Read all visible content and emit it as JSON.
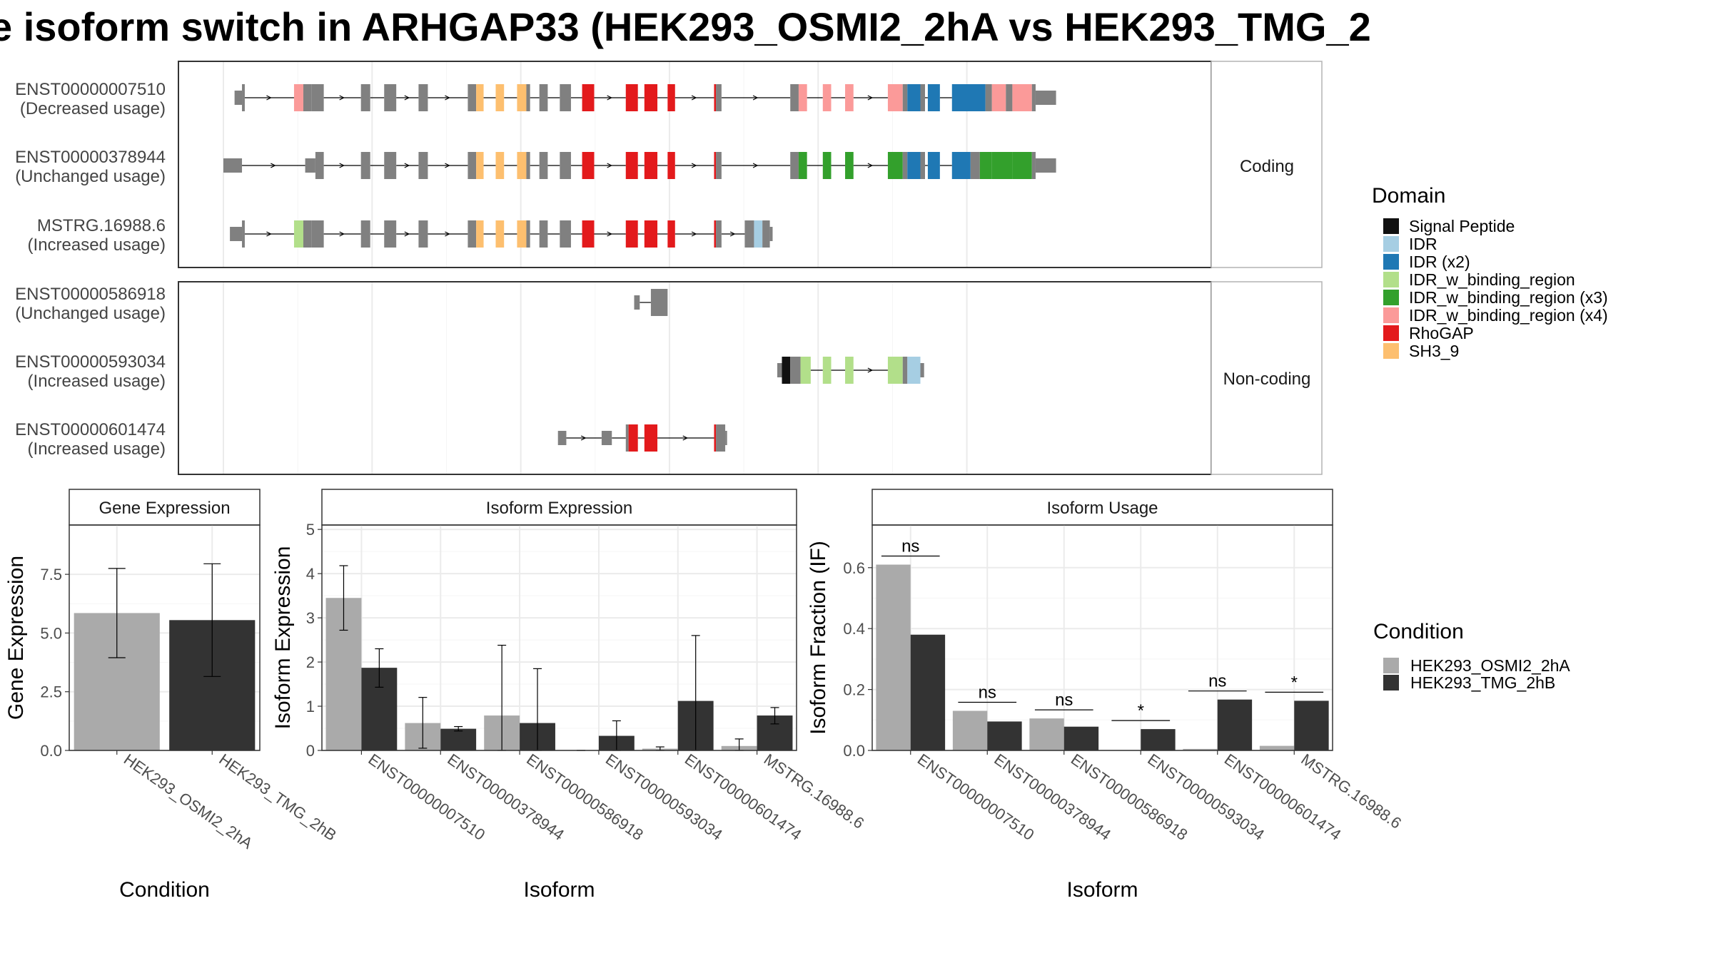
{
  "title": "e isoform switch in ARHGAP33 (HEK293_OSMI2_2hA vs HEK293_TMG_2",
  "colors": {
    "intron": "#000000",
    "exon": "#808080",
    "cond1": "#aaaaaa",
    "cond2": "#333333",
    "grid": "#ebebeb",
    "panel_border": "#333333",
    "strip_border": "#b3b3b3"
  },
  "structure": {
    "coding_label": "Coding",
    "noncoding_label": "Non-coding",
    "coding": [
      {
        "id": "ENST00000007510",
        "usage": "(Decreased usage)",
        "start": 12,
        "end": 1015,
        "exons": [
          {
            "s": 12,
            "e": 20,
            "h": "s"
          },
          {
            "s": 20,
            "e": 23,
            "h": "m"
          },
          {
            "s": 76,
            "e": 86,
            "h": "t",
            "d": "IDR_w_binding_region (x4)"
          },
          {
            "s": 86,
            "e": 95,
            "h": "t"
          },
          {
            "s": 95,
            "e": 108,
            "h": "t"
          },
          {
            "s": 148,
            "e": 158,
            "h": "t"
          },
          {
            "s": 173,
            "e": 186,
            "h": "t"
          },
          {
            "s": 210,
            "e": 220,
            "h": "t"
          },
          {
            "s": 263,
            "e": 272,
            "h": "t"
          },
          {
            "s": 272,
            "e": 280,
            "h": "t",
            "d": "SH3_9"
          },
          {
            "s": 293,
            "e": 302,
            "h": "t",
            "d": "SH3_9"
          },
          {
            "s": 316,
            "e": 326,
            "h": "t",
            "d": "SH3_9"
          },
          {
            "s": 326,
            "e": 330,
            "h": "t"
          },
          {
            "s": 340,
            "e": 349,
            "h": "t"
          },
          {
            "s": 362,
            "e": 374,
            "h": "t"
          },
          {
            "s": 386,
            "e": 399,
            "h": "t",
            "d": "RhoGAP"
          },
          {
            "s": 433,
            "e": 446,
            "h": "t",
            "d": "RhoGAP"
          },
          {
            "s": 453,
            "e": 467,
            "h": "t",
            "d": "RhoGAP"
          },
          {
            "s": 478,
            "e": 486,
            "h": "t",
            "d": "RhoGAP"
          },
          {
            "s": 528,
            "e": 530,
            "h": "t",
            "d": "RhoGAP"
          },
          {
            "s": 530,
            "e": 536,
            "h": "t"
          },
          {
            "s": 610,
            "e": 619,
            "h": "t"
          },
          {
            "s": 619,
            "e": 628,
            "h": "t",
            "d": "IDR_w_binding_region (x4)"
          },
          {
            "s": 645,
            "e": 654,
            "h": "t",
            "d": "IDR_w_binding_region (x4)"
          },
          {
            "s": 669,
            "e": 678,
            "h": "t",
            "d": "IDR_w_binding_region (x4)"
          },
          {
            "s": 715,
            "e": 731,
            "h": "t",
            "d": "IDR_w_binding_region (x4)"
          },
          {
            "s": 731,
            "e": 736,
            "h": "t"
          },
          {
            "s": 736,
            "e": 750,
            "h": "t",
            "d": "IDR (x2)"
          },
          {
            "s": 750,
            "e": 755,
            "h": "t"
          },
          {
            "s": 758,
            "e": 771,
            "h": "t",
            "d": "IDR (x2)"
          },
          {
            "s": 784,
            "e": 820,
            "h": "t",
            "d": "IDR (x2)"
          },
          {
            "s": 820,
            "e": 827,
            "h": "t"
          },
          {
            "s": 827,
            "e": 842,
            "h": "t",
            "d": "IDR_w_binding_region (x4)"
          },
          {
            "s": 842,
            "e": 849,
            "h": "t"
          },
          {
            "s": 849,
            "e": 870,
            "h": "t",
            "d": "IDR_w_binding_region (x4)"
          },
          {
            "s": 870,
            "e": 874,
            "h": "t"
          },
          {
            "s": 874,
            "e": 896,
            "h": "s"
          }
        ]
      },
      {
        "id": "ENST00000378944",
        "usage": "(Unchanged usage)",
        "start": 0,
        "end": 1015,
        "exons": [
          {
            "s": 0,
            "e": 20,
            "h": "s"
          },
          {
            "s": 88,
            "e": 99,
            "h": "s"
          },
          {
            "s": 99,
            "e": 108,
            "h": "t"
          },
          {
            "s": 148,
            "e": 158,
            "h": "t"
          },
          {
            "s": 173,
            "e": 186,
            "h": "t"
          },
          {
            "s": 210,
            "e": 220,
            "h": "t"
          },
          {
            "s": 263,
            "e": 272,
            "h": "t"
          },
          {
            "s": 272,
            "e": 280,
            "h": "t",
            "d": "SH3_9"
          },
          {
            "s": 293,
            "e": 302,
            "h": "t",
            "d": "SH3_9"
          },
          {
            "s": 316,
            "e": 326,
            "h": "t",
            "d": "SH3_9"
          },
          {
            "s": 326,
            "e": 330,
            "h": "t"
          },
          {
            "s": 340,
            "e": 349,
            "h": "t"
          },
          {
            "s": 362,
            "e": 374,
            "h": "t"
          },
          {
            "s": 386,
            "e": 399,
            "h": "t",
            "d": "RhoGAP"
          },
          {
            "s": 433,
            "e": 446,
            "h": "t",
            "d": "RhoGAP"
          },
          {
            "s": 453,
            "e": 467,
            "h": "t",
            "d": "RhoGAP"
          },
          {
            "s": 478,
            "e": 486,
            "h": "t",
            "d": "RhoGAP"
          },
          {
            "s": 528,
            "e": 530,
            "h": "t",
            "d": "RhoGAP"
          },
          {
            "s": 530,
            "e": 536,
            "h": "t"
          },
          {
            "s": 610,
            "e": 619,
            "h": "t"
          },
          {
            "s": 619,
            "e": 628,
            "h": "t",
            "d": "IDR_w_binding_region (x3)"
          },
          {
            "s": 645,
            "e": 654,
            "h": "t",
            "d": "IDR_w_binding_region (x3)"
          },
          {
            "s": 669,
            "e": 678,
            "h": "t",
            "d": "IDR_w_binding_region (x3)"
          },
          {
            "s": 715,
            "e": 731,
            "h": "t",
            "d": "IDR_w_binding_region (x3)"
          },
          {
            "s": 731,
            "e": 736,
            "h": "t"
          },
          {
            "s": 736,
            "e": 750,
            "h": "t",
            "d": "IDR (x2)"
          },
          {
            "s": 750,
            "e": 755,
            "h": "t"
          },
          {
            "s": 758,
            "e": 771,
            "h": "t",
            "d": "IDR (x2)"
          },
          {
            "s": 784,
            "e": 804,
            "h": "t",
            "d": "IDR (x2)"
          },
          {
            "s": 804,
            "e": 814,
            "h": "t"
          },
          {
            "s": 814,
            "e": 827,
            "h": "t",
            "d": "IDR_w_binding_region (x3)"
          },
          {
            "s": 827,
            "e": 849,
            "h": "t",
            "d": "IDR_w_binding_region (x3)"
          },
          {
            "s": 849,
            "e": 870,
            "h": "t",
            "d": "IDR_w_binding_region (x3)"
          },
          {
            "s": 870,
            "e": 874,
            "h": "t"
          },
          {
            "s": 874,
            "e": 896,
            "h": "s"
          }
        ]
      },
      {
        "id": "MSTRG.16988.6",
        "usage": "(Increased usage)",
        "start": 7,
        "end": 610,
        "exons": [
          {
            "s": 7,
            "e": 20,
            "h": "s"
          },
          {
            "s": 20,
            "e": 23,
            "h": "m"
          },
          {
            "s": 76,
            "e": 86,
            "h": "t",
            "d": "IDR_w_binding_region"
          },
          {
            "s": 86,
            "e": 95,
            "h": "t"
          },
          {
            "s": 95,
            "e": 108,
            "h": "t"
          },
          {
            "s": 148,
            "e": 158,
            "h": "t"
          },
          {
            "s": 173,
            "e": 186,
            "h": "t"
          },
          {
            "s": 210,
            "e": 220,
            "h": "t"
          },
          {
            "s": 263,
            "e": 272,
            "h": "t"
          },
          {
            "s": 272,
            "e": 280,
            "h": "t",
            "d": "SH3_9"
          },
          {
            "s": 293,
            "e": 302,
            "h": "t",
            "d": "SH3_9"
          },
          {
            "s": 316,
            "e": 326,
            "h": "t",
            "d": "SH3_9"
          },
          {
            "s": 326,
            "e": 330,
            "h": "t"
          },
          {
            "s": 340,
            "e": 349,
            "h": "t"
          },
          {
            "s": 362,
            "e": 374,
            "h": "t"
          },
          {
            "s": 386,
            "e": 399,
            "h": "t",
            "d": "RhoGAP"
          },
          {
            "s": 433,
            "e": 446,
            "h": "t",
            "d": "RhoGAP"
          },
          {
            "s": 453,
            "e": 467,
            "h": "t",
            "d": "RhoGAP"
          },
          {
            "s": 478,
            "e": 486,
            "h": "t",
            "d": "RhoGAP"
          },
          {
            "s": 528,
            "e": 530,
            "h": "t",
            "d": "RhoGAP"
          },
          {
            "s": 530,
            "e": 536,
            "h": "t"
          },
          {
            "s": 561,
            "e": 571,
            "h": "t"
          },
          {
            "s": 571,
            "e": 580,
            "h": "t",
            "d": "IDR"
          },
          {
            "s": 580,
            "e": 588,
            "h": "t"
          },
          {
            "s": 588,
            "e": 591,
            "h": "s"
          }
        ]
      }
    ],
    "noncoding": [
      {
        "id": "ENST00000586918",
        "usage": "(Unchanged usage)",
        "start": 442,
        "end": 478,
        "exons": [
          {
            "s": 442,
            "e": 448,
            "h": "s"
          },
          {
            "s": 460,
            "e": 478,
            "h": "t"
          }
        ]
      },
      {
        "id": "ENST00000593034",
        "usage": "(Increased usage)",
        "start": 600,
        "end": 680,
        "exons": [
          {
            "s": 596,
            "e": 601,
            "h": "s"
          },
          {
            "s": 601,
            "e": 610,
            "h": "t",
            "d": "Signal Peptide"
          },
          {
            "s": 610,
            "e": 621,
            "h": "t"
          },
          {
            "s": 621,
            "e": 632,
            "h": "t",
            "d": "IDR_w_binding_region"
          },
          {
            "s": 645,
            "e": 654,
            "h": "t",
            "d": "IDR_w_binding_region"
          },
          {
            "s": 669,
            "e": 678,
            "h": "t",
            "d": "IDR_w_binding_region"
          },
          {
            "s": 715,
            "e": 731,
            "h": "t",
            "d": "IDR_w_binding_region"
          },
          {
            "s": 731,
            "e": 736,
            "h": "t"
          },
          {
            "s": 736,
            "e": 750,
            "h": "t",
            "d": "IDR"
          },
          {
            "s": 750,
            "e": 754,
            "h": "s"
          }
        ]
      },
      {
        "id": "ENST00000601474",
        "usage": "(Increased usage)",
        "start": 360,
        "end": 520,
        "exons": [
          {
            "s": 360,
            "e": 369,
            "h": "s"
          },
          {
            "s": 407,
            "e": 418,
            "h": "s"
          },
          {
            "s": 433,
            "e": 436,
            "h": "t"
          },
          {
            "s": 436,
            "e": 446,
            "h": "t",
            "d": "RhoGAP"
          },
          {
            "s": 453,
            "e": 467,
            "h": "t",
            "d": "RhoGAP"
          },
          {
            "s": 528,
            "e": 530,
            "h": "t",
            "d": "RhoGAP"
          },
          {
            "s": 530,
            "e": 540,
            "h": "t"
          },
          {
            "s": 540,
            "e": 542,
            "h": "s"
          }
        ]
      }
    ]
  },
  "legend_domain": {
    "title": "Domain",
    "items": [
      {
        "label": "Signal Peptide",
        "color": "#111111"
      },
      {
        "label": "IDR",
        "color": "#a6cee3"
      },
      {
        "label": "IDR (x2)",
        "color": "#1f78b4"
      },
      {
        "label": "IDR_w_binding_region",
        "color": "#b2df8a"
      },
      {
        "label": "IDR_w_binding_region (x3)",
        "color": "#33a02c"
      },
      {
        "label": "IDR_w_binding_region (x4)",
        "color": "#fb9a99"
      },
      {
        "label": "RhoGAP",
        "color": "#e31a1c"
      },
      {
        "label": "SH3_9",
        "color": "#fdbf6f"
      }
    ]
  },
  "legend_condition": {
    "title": "Condition",
    "items": [
      {
        "label": "HEK293_OSMI2_2hA",
        "color": "#aaaaaa"
      },
      {
        "label": "HEK293_TMG_2hB",
        "color": "#333333"
      }
    ]
  },
  "chart_data": [
    {
      "type": "bar",
      "title": "Gene Expression",
      "xlabel": "Condition",
      "ylabel": "Gene Expression",
      "ylim": [
        0,
        9.6
      ],
      "yticks": [
        0.0,
        2.5,
        5.0,
        7.5
      ],
      "ytick_labels": [
        "0.0",
        "2.5",
        "5.0",
        "7.5"
      ],
      "categories": [
        "HEK293_OSMI2_2hA",
        "HEK293_TMG_2hB"
      ],
      "values": [
        5.85,
        5.55
      ],
      "err_low": [
        3.95,
        3.15
      ],
      "err_high": [
        7.75,
        7.95
      ]
    },
    {
      "type": "bar",
      "title": "Isoform Expression",
      "xlabel": "Isoform",
      "ylabel": "Isoform Expression",
      "ylim": [
        0,
        5.1
      ],
      "yticks": [
        0,
        1,
        2,
        3,
        4,
        5
      ],
      "ytick_labels": [
        "0",
        "1",
        "2",
        "3",
        "4",
        "5"
      ],
      "categories": [
        "ENST00000007510",
        "ENST00000378944",
        "ENST00000586918",
        "ENST00000593034",
        "ENST00000601474",
        "MSTRG.16988.6"
      ],
      "series": [
        {
          "name": "HEK293_OSMI2_2hA",
          "values": [
            3.45,
            0.62,
            0.79,
            0.0,
            0.04,
            0.1
          ],
          "err_low": [
            2.72,
            0.05,
            0.0,
            0.0,
            0.0,
            0.0
          ],
          "err_high": [
            4.18,
            1.2,
            2.38,
            0.0,
            0.08,
            0.26
          ]
        },
        {
          "name": "HEK293_TMG_2hB",
          "values": [
            1.87,
            0.49,
            0.62,
            0.33,
            1.12,
            0.79
          ],
          "err_low": [
            1.43,
            0.44,
            0.0,
            0.0,
            0.0,
            0.6
          ],
          "err_high": [
            2.3,
            0.54,
            1.85,
            0.67,
            2.6,
            0.97
          ]
        }
      ]
    },
    {
      "type": "bar",
      "title": "Isoform Usage",
      "xlabel": "Isoform",
      "ylabel": "Isoform Fraction (IF)",
      "ylim": [
        0,
        0.74
      ],
      "yticks": [
        0.0,
        0.2,
        0.4,
        0.6
      ],
      "ytick_labels": [
        "0.0",
        "0.2",
        "0.4",
        "0.6"
      ],
      "categories": [
        "ENST00000007510",
        "ENST00000378944",
        "ENST00000586918",
        "ENST00000593034",
        "ENST00000601474",
        "MSTRG.16988.6"
      ],
      "series": [
        {
          "name": "HEK293_OSMI2_2hA",
          "values": [
            0.61,
            0.13,
            0.105,
            0.0,
            0.005,
            0.015
          ]
        },
        {
          "name": "HEK293_TMG_2hB",
          "values": [
            0.38,
            0.095,
            0.078,
            0.07,
            0.167,
            0.163
          ]
        }
      ],
      "significance": [
        "ns",
        "ns",
        "ns",
        "*",
        "ns",
        "*"
      ]
    }
  ]
}
